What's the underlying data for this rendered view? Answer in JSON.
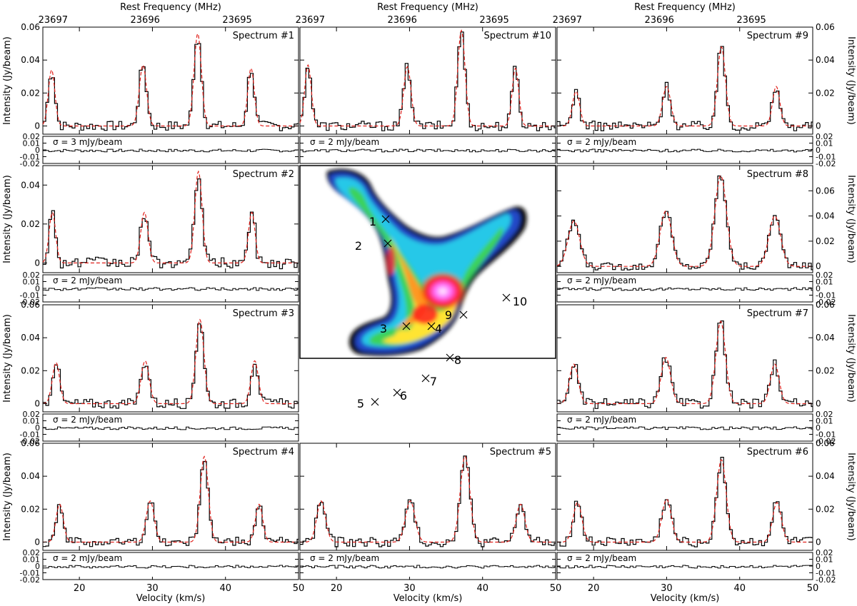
{
  "figure": {
    "top_axis_title": "Rest Frequency (MHz)",
    "x_axis_title": "Velocity (km/s)",
    "y_axis_title": "Intensity (Jy/beam)"
  },
  "chart_data": {
    "type": "line",
    "x_unit": "km/s",
    "x_range_by_column": [
      [
        15,
        50
      ],
      [
        15,
        50
      ],
      [
        15,
        50
      ]
    ],
    "x_ticks": [
      20,
      30,
      40,
      50
    ],
    "top_ticks_MHz": [
      "23697",
      "23696",
      "23695"
    ],
    "y_ticks": [
      0,
      0.02,
      0.04,
      0.06
    ],
    "residual_ylim": [
      -0.02,
      0.02
    ],
    "residual_ticks": [
      -0.02,
      -0.01,
      0,
      0.01,
      0.02
    ],
    "series_colors": {
      "observed": "#000000",
      "model_fit": "#e0201b"
    },
    "panels": [
      {
        "label": "Spectrum #1",
        "col": 0,
        "row": 0,
        "ylim": [
          -0.005,
          0.06
        ],
        "sigma": "σ = 3 mJy/beam",
        "lines": [
          {
            "v": 16.2,
            "peak": 0.034,
            "w": 0.45
          },
          {
            "v": 28.7,
            "peak": 0.037,
            "w": 0.5
          },
          {
            "v": 36.2,
            "peak": 0.056,
            "w": 0.5
          },
          {
            "v": 43.5,
            "peak": 0.035,
            "w": 0.45
          }
        ]
      },
      {
        "label": "Spectrum #10",
        "col": 1,
        "row": 0,
        "ylim": [
          -0.005,
          0.06
        ],
        "sigma": "σ = 2 mJy/beam",
        "lines": [
          {
            "v": 16.1,
            "peak": 0.037,
            "w": 0.45
          },
          {
            "v": 29.7,
            "peak": 0.036,
            "w": 0.5
          },
          {
            "v": 37.1,
            "peak": 0.058,
            "w": 0.5
          },
          {
            "v": 44.5,
            "peak": 0.035,
            "w": 0.45
          }
        ]
      },
      {
        "label": "Spectrum #9",
        "col": 2,
        "row": 0,
        "ylim": [
          -0.005,
          0.06
        ],
        "sigma": "σ = 2 mJy/beam",
        "lines": [
          {
            "v": 17.6,
            "peak": 0.021,
            "w": 0.5
          },
          {
            "v": 30.0,
            "peak": 0.024,
            "w": 0.55
          },
          {
            "v": 37.5,
            "peak": 0.048,
            "w": 0.55
          },
          {
            "v": 45.0,
            "peak": 0.024,
            "w": 0.5
          }
        ]
      },
      {
        "label": "Spectrum #2",
        "col": 0,
        "row": 1,
        "ylim": [
          -0.005,
          0.05
        ],
        "sigma": "σ = 2 mJy/beam",
        "lines": [
          {
            "v": 16.3,
            "peak": 0.026,
            "w": 0.45
          },
          {
            "v": 28.9,
            "peak": 0.026,
            "w": 0.5
          },
          {
            "v": 36.3,
            "peak": 0.047,
            "w": 0.5
          },
          {
            "v": 43.6,
            "peak": 0.026,
            "w": 0.45
          }
        ]
      },
      {
        "label": "Spectrum #8",
        "col": 2,
        "row": 1,
        "ylim": [
          -0.005,
          0.08
        ],
        "sigma": "σ = 2 mJy/beam",
        "lines": [
          {
            "v": 17.3,
            "peak": 0.036,
            "w": 0.8
          },
          {
            "v": 29.9,
            "peak": 0.044,
            "w": 0.8
          },
          {
            "v": 37.4,
            "peak": 0.072,
            "w": 0.8
          },
          {
            "v": 44.8,
            "peak": 0.04,
            "w": 0.8
          }
        ]
      },
      {
        "label": "Spectrum #3",
        "col": 0,
        "row": 2,
        "ylim": [
          -0.005,
          0.06
        ],
        "sigma": "σ = 2 mJy/beam",
        "lines": [
          {
            "v": 16.8,
            "peak": 0.025,
            "w": 0.5
          },
          {
            "v": 29.0,
            "peak": 0.026,
            "w": 0.55
          },
          {
            "v": 36.5,
            "peak": 0.051,
            "w": 0.55
          },
          {
            "v": 44.0,
            "peak": 0.026,
            "w": 0.5
          }
        ]
      },
      {
        "label": "Spectrum #7",
        "col": 2,
        "row": 2,
        "ylim": [
          -0.005,
          0.06
        ],
        "sigma": "σ = 2 mJy/beam",
        "lines": [
          {
            "v": 17.3,
            "peak": 0.024,
            "w": 0.6
          },
          {
            "v": 29.9,
            "peak": 0.028,
            "w": 0.65
          },
          {
            "v": 37.4,
            "peak": 0.05,
            "w": 0.65
          },
          {
            "v": 44.8,
            "peak": 0.024,
            "w": 0.6
          }
        ]
      },
      {
        "label": "Spectrum #4",
        "col": 0,
        "row": 3,
        "ylim": [
          -0.005,
          0.06
        ],
        "sigma": "σ = 2 mJy/beam",
        "lines": [
          {
            "v": 17.3,
            "peak": 0.023,
            "w": 0.5
          },
          {
            "v": 29.7,
            "peak": 0.025,
            "w": 0.55
          },
          {
            "v": 37.1,
            "peak": 0.052,
            "w": 0.55
          },
          {
            "v": 44.6,
            "peak": 0.023,
            "w": 0.5
          }
        ]
      },
      {
        "label": "Spectrum #5",
        "col": 1,
        "row": 3,
        "ylim": [
          -0.005,
          0.06
        ],
        "sigma": "σ = 2 mJy/beam",
        "lines": [
          {
            "v": 17.9,
            "peak": 0.025,
            "w": 0.6
          },
          {
            "v": 30.1,
            "peak": 0.025,
            "w": 0.65
          },
          {
            "v": 37.6,
            "peak": 0.052,
            "w": 0.65
          },
          {
            "v": 45.2,
            "peak": 0.023,
            "w": 0.6
          }
        ]
      },
      {
        "label": "Spectrum #6",
        "col": 2,
        "row": 3,
        "ylim": [
          -0.005,
          0.06
        ],
        "sigma": "σ = 2 mJy/beam",
        "lines": [
          {
            "v": 17.8,
            "peak": 0.024,
            "w": 0.6
          },
          {
            "v": 30.0,
            "peak": 0.026,
            "w": 0.65
          },
          {
            "v": 37.5,
            "peak": 0.05,
            "w": 0.65
          },
          {
            "v": 45.1,
            "peak": 0.024,
            "w": 0.6
          }
        ]
      }
    ],
    "map_labels": [
      "1",
      "2",
      "3",
      "4",
      "5",
      "6",
      "7",
      "8",
      "9",
      "10"
    ]
  }
}
